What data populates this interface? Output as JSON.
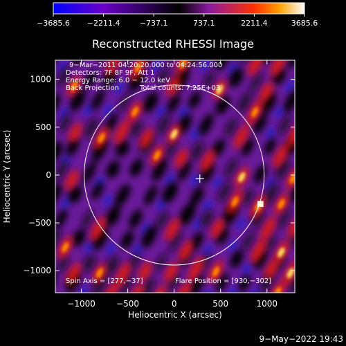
{
  "chart_data": {
    "type": "heatmap",
    "title": "Reconstructed RHESSI Image",
    "xlabel": "Heliocentric X (arcsec)",
    "ylabel": "Heliocentric Y (arcsec)",
    "xlim": [
      -1280,
      1300
    ],
    "ylim": [
      -1230,
      1200
    ],
    "xticks": [
      -1000,
      -500,
      0,
      500,
      1000
    ],
    "xtick_labels": [
      "−1000",
      "−500",
      "0",
      "500",
      "1000"
    ],
    "yticks": [
      -1000,
      -500,
      0,
      500,
      1000
    ],
    "ytick_labels": [
      "−1000",
      "−500",
      "0",
      "500",
      "1000"
    ],
    "colorbar": {
      "min": -3685.6,
      "max": 3685.6,
      "ticks": [
        -3685.6,
        -2211.4,
        -737.1,
        737.1,
        2211.4,
        3685.6
      ],
      "tick_labels": [
        "−3685.6",
        "−2211.4",
        "−737.1",
        "737.1",
        "2211.4",
        "3685.6"
      ],
      "colors": [
        "#0000ff",
        "#6a00c8",
        "#000000",
        "#8a1aa0",
        "#ff3000",
        "#ffa000",
        "#ffffff"
      ]
    },
    "annotations": [
      "9−Mar−2011 04:20:20.000 to 04:24:56.000",
      "Detectors: 7F 8F 9F, Att 1",
      "Energy Range: 6.0 − 12.0 keV",
      "Back Projection",
      "Total counts: 7.25E+03",
      "Spin Axis = [277,−37]",
      "Flare Position = [930,−302]"
    ],
    "solar_disk": {
      "center": [
        0,
        0
      ],
      "radius_arcsec": 970
    },
    "spin_axis": [
      277,
      -37
    ],
    "flare_position": [
      930,
      -302
    ],
    "grid": false
  },
  "footer": {
    "timestamp": "9−May−2022 19:43"
  }
}
